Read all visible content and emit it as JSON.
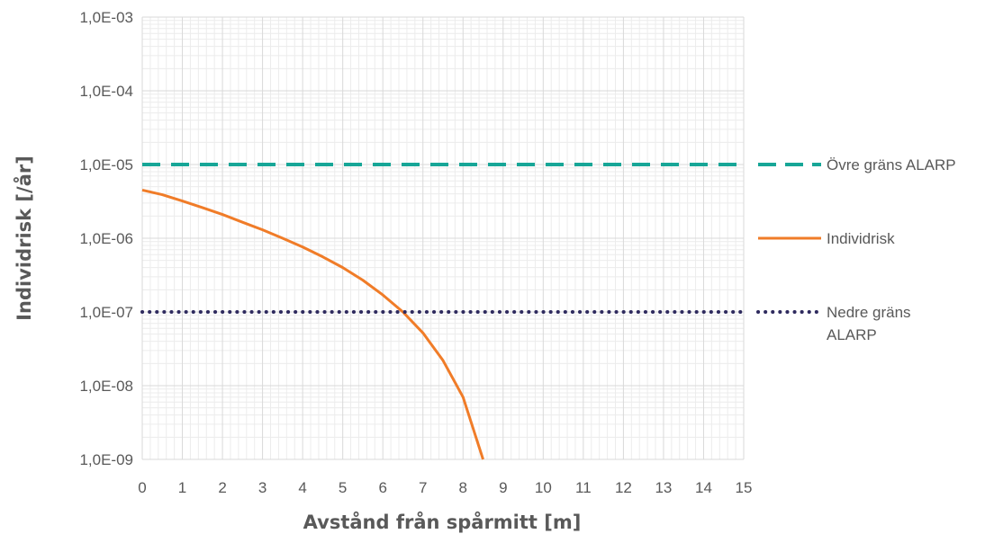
{
  "chart_data": {
    "type": "line",
    "xlabel": "Avstånd från spårmitt [m]",
    "ylabel": "Individrisk [/år]",
    "xlim": [
      0,
      15
    ],
    "ylim": [
      1e-09,
      0.001
    ],
    "yscale": "log",
    "grid": true,
    "legend_position": "right",
    "x_ticks": [
      "0",
      "1",
      "2",
      "3",
      "4",
      "5",
      "6",
      "7",
      "8",
      "9",
      "10",
      "11",
      "12",
      "13",
      "14",
      "15"
    ],
    "y_ticks": [
      "1,0E-09",
      "1,0E-08",
      "1,0E-07",
      "1,0E-06",
      "1,0E-05",
      "1,0E-04",
      "1,0E-03"
    ],
    "series": [
      {
        "name": "Övre gräns ALARP",
        "style": "dashed",
        "color": "#17a697",
        "x": [
          0,
          15
        ],
        "y": [
          1e-05,
          1e-05
        ]
      },
      {
        "name": "Individrisk",
        "style": "solid",
        "color": "#f07c28",
        "x": [
          0,
          0.5,
          1,
          1.5,
          2,
          2.5,
          3,
          3.5,
          4,
          4.5,
          5,
          5.5,
          6,
          6.5,
          7,
          7.5,
          8,
          8.5
        ],
        "y": [
          4.5e-06,
          3.9e-06,
          3.2e-06,
          2.6e-06,
          2.1e-06,
          1.65e-06,
          1.3e-06,
          1e-06,
          7.6e-07,
          5.6e-07,
          4e-07,
          2.7e-07,
          1.7e-07,
          1e-07,
          5.2e-08,
          2.2e-08,
          7e-09,
          1e-09
        ]
      },
      {
        "name": "Nedre gräns ALARP",
        "style": "dotted",
        "color": "#2e2a5e",
        "x": [
          0,
          15
        ],
        "y": [
          1e-07,
          1e-07
        ]
      }
    ],
    "legend": [
      {
        "lines": [
          "Övre gräns ALARP"
        ]
      },
      {
        "lines": [
          "Individrisk"
        ]
      },
      {
        "lines": [
          "Nedre gräns",
          "ALARP"
        ]
      }
    ]
  }
}
